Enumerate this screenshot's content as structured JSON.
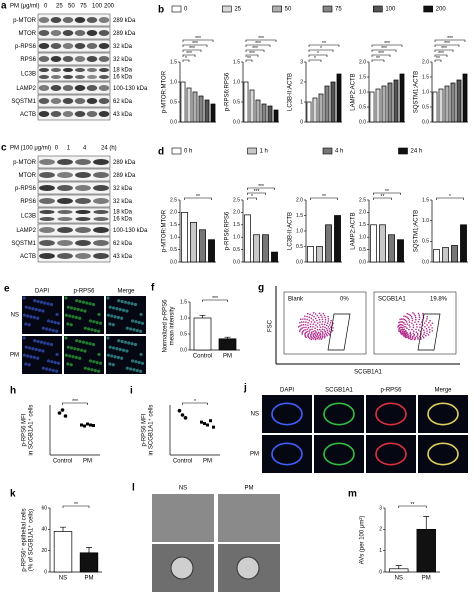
{
  "panels": {
    "a": {
      "label": "a",
      "header": "PM (μg/ml)",
      "lanes": [
        "0",
        "25",
        "50",
        "75",
        "100",
        "200"
      ],
      "rows": [
        {
          "name": "p-MTOR",
          "size": "289 kDa"
        },
        {
          "name": "MTOR",
          "size": "289 kDa"
        },
        {
          "name": "p-RPS6",
          "size": "32 kDa"
        },
        {
          "name": "RPS6",
          "size": "32 kDa"
        },
        {
          "name": "LC3B",
          "size": "18 kDa",
          "size2": "16 kDa"
        },
        {
          "name": "LAMP2",
          "size": "100-130 kDa"
        },
        {
          "name": "SQSTM1",
          "size": "62 kDa"
        },
        {
          "name": "ACTB",
          "size": "43 kDa"
        }
      ]
    },
    "b": {
      "label": "b",
      "legend": [
        "0",
        "25",
        "50",
        "75",
        "100",
        "200"
      ],
      "colors": [
        "#ffffff",
        "#d9d9d9",
        "#b0b0b0",
        "#858585",
        "#555555",
        "#111111"
      ]
    },
    "c": {
      "label": "c",
      "header": "PM (100 μg/ml)",
      "lanes": [
        "0",
        "1",
        "4",
        "24 (h)"
      ],
      "rows": [
        {
          "name": "p-MTOR",
          "size": "289 kDa"
        },
        {
          "name": "MTOR",
          "size": "289 kDa"
        },
        {
          "name": "p-RPS6",
          "size": "32 kDa"
        },
        {
          "name": "RPS6",
          "size": "32 kDa"
        },
        {
          "name": "LC3B",
          "size": "18 kDa",
          "size2": "16 kDa"
        },
        {
          "name": "LAMP2",
          "size": "100-130 kDa"
        },
        {
          "name": "SQSTM1",
          "size": "62 kDa"
        },
        {
          "name": "ACTB",
          "size": "43 kDa"
        }
      ]
    },
    "d": {
      "label": "d",
      "legend": [
        "0 h",
        "1 h",
        "4 h",
        "24 h"
      ],
      "colors": [
        "#ffffff",
        "#c8c8c8",
        "#777777",
        "#111111"
      ]
    },
    "e": {
      "label": "e",
      "columns": [
        "DAPI",
        "p-RPS6",
        "Merge"
      ],
      "rows": [
        "NS",
        "PM"
      ]
    },
    "g": {
      "label": "g",
      "plots": [
        {
          "title": "Blank",
          "percent": "0%"
        },
        {
          "title": "SCGB1A1",
          "percent": "19.8%"
        }
      ],
      "ylabel": "FSC",
      "xlabel": "SCGB1A1"
    },
    "j": {
      "label": "j",
      "columns": [
        "DAPI",
        "SCGB1A1",
        "p-RPS6",
        "Merge"
      ],
      "rows": [
        "NS",
        "PM"
      ]
    },
    "l": {
      "label": "l",
      "columns": [
        "NS",
        "PM"
      ]
    }
  },
  "chart_data": [
    {
      "type": "bar",
      "ylabel": [
        "p-MTOR:MTOR"
      ],
      "values": [
        1.0,
        0.85,
        0.75,
        0.65,
        0.55,
        0.45
      ],
      "colors": [
        "#ffffff",
        "#d9d9d9",
        "#b0b0b0",
        "#858585",
        "#555555",
        "#111111"
      ],
      "ylim": [
        0,
        1.5
      ],
      "yticks": [
        {
          "value": 0,
          "label": "0.0"
        },
        0.5,
        {
          "value": 1,
          "label": "1.0"
        },
        1.5
      ],
      "annotations": [
        "*",
        "***",
        "***",
        "***",
        "***"
      ]
    },
    {
      "type": "bar",
      "ylabel": [
        "p-RPS6:RPS6"
      ],
      "values": [
        1.0,
        0.8,
        0.55,
        0.45,
        0.4,
        0.3
      ],
      "colors": [
        "#ffffff",
        "#d9d9d9",
        "#b0b0b0",
        "#858585",
        "#555555",
        "#111111"
      ],
      "ylim": [
        0,
        1.5
      ],
      "yticks": [
        {
          "value": 0,
          "label": "0.0"
        },
        0.5,
        {
          "value": 1,
          "label": "1.0"
        },
        1.5
      ],
      "annotations": [
        "**",
        "***",
        "***",
        "***",
        "***"
      ]
    },
    {
      "type": "bar",
      "ylabel": [
        "LC3B-II:ACTB"
      ],
      "values": [
        1.0,
        1.2,
        1.4,
        1.8,
        2.0,
        2.4
      ],
      "colors": [
        "#ffffff",
        "#d9d9d9",
        "#b0b0b0",
        "#858585",
        "#555555",
        "#111111"
      ],
      "ylim": [
        0,
        3
      ],
      "yticks": [
        0,
        1,
        2,
        3
      ],
      "annotations": [
        "*",
        "*",
        "*",
        "**"
      ]
    },
    {
      "type": "bar",
      "ylabel": [
        "LAMP2:ACTB"
      ],
      "values": [
        1.0,
        1.1,
        1.2,
        1.3,
        1.4,
        1.6
      ],
      "colors": [
        "#ffffff",
        "#d9d9d9",
        "#b0b0b0",
        "#858585",
        "#555555",
        "#111111"
      ],
      "ylim": [
        0,
        2
      ],
      "yticks": [
        {
          "value": 0,
          "label": "0.0"
        },
        0.5,
        {
          "value": 1,
          "label": "1.0"
        },
        1.5,
        {
          "value": 2,
          "label": "2.0"
        }
      ],
      "annotations": [
        "**",
        "***",
        "***",
        "***"
      ]
    },
    {
      "type": "bar",
      "ylabel": [
        "SQSTM1:ACTB"
      ],
      "values": [
        1.0,
        1.1,
        1.2,
        1.3,
        1.4,
        1.6
      ],
      "colors": [
        "#ffffff",
        "#d9d9d9",
        "#b0b0b0",
        "#858585",
        "#555555",
        "#111111"
      ],
      "ylim": [
        0,
        2
      ],
      "yticks": [
        {
          "value": 0,
          "label": "0.0"
        },
        0.5,
        {
          "value": 1,
          "label": "1.0"
        },
        1.5,
        {
          "value": 2,
          "label": "2.0"
        }
      ],
      "annotations": [
        "**",
        "***",
        "***",
        "***",
        "***"
      ]
    },
    {
      "type": "bar",
      "ylabel": [
        "p-MTOR:MTOR"
      ],
      "values": [
        2.0,
        1.6,
        1.3,
        0.9
      ],
      "colors": [
        "#ffffff",
        "#c8c8c8",
        "#777777",
        "#111111"
      ],
      "ylim": [
        0,
        2.5
      ],
      "yticks": [
        {
          "value": 0,
          "label": "0.0"
        },
        0.5,
        {
          "value": 1,
          "label": "1.0"
        },
        1.5,
        {
          "value": 2,
          "label": "2.0"
        },
        2.5
      ],
      "annotations": [
        "**"
      ]
    },
    {
      "type": "bar",
      "ylabel": [
        "p-RPS6:RPS6"
      ],
      "values": [
        1.9,
        1.1,
        1.1,
        0.4
      ],
      "colors": [
        "#ffffff",
        "#c8c8c8",
        "#777777",
        "#111111"
      ],
      "ylim": [
        0,
        2.5
      ],
      "yticks": [
        {
          "value": 0,
          "label": "0.0"
        },
        0.5,
        {
          "value": 1,
          "label": "1.0"
        },
        1.5,
        {
          "value": 2,
          "label": "2.0"
        },
        2.5
      ],
      "annotations": [
        "*",
        "***",
        "***"
      ]
    },
    {
      "type": "bar",
      "ylabel": [
        "LC3B-II:ACTB"
      ],
      "values": [
        0.5,
        0.5,
        1.2,
        1.5
      ],
      "colors": [
        "#ffffff",
        "#c8c8c8",
        "#777777",
        "#111111"
      ],
      "ylim": [
        0,
        2
      ],
      "yticks": [
        {
          "value": 0,
          "label": "0.0"
        },
        0.5,
        {
          "value": 1,
          "label": "1.0"
        },
        1.5,
        {
          "value": 2,
          "label": "2.0"
        }
      ],
      "annotations": [
        "**"
      ]
    },
    {
      "type": "bar",
      "ylabel": [
        "LAMP2:ACTB"
      ],
      "values": [
        1.5,
        1.5,
        1.1,
        0.9
      ],
      "colors": [
        "#ffffff",
        "#c8c8c8",
        "#777777",
        "#111111"
      ],
      "ylim": [
        0,
        2.5
      ],
      "yticks": [
        {
          "value": 0,
          "label": "0.0"
        },
        0.5,
        {
          "value": 1,
          "label": "1.0"
        },
        1.5,
        {
          "value": 2,
          "label": "2.0"
        },
        2.5
      ],
      "annotations": [
        "**",
        "**"
      ]
    },
    {
      "type": "bar",
      "ylabel": [
        "SQSTM1:ACTB"
      ],
      "values": [
        0.3,
        0.35,
        0.4,
        0.9
      ],
      "colors": [
        "#ffffff",
        "#c8c8c8",
        "#777777",
        "#111111"
      ],
      "ylim": [
        0,
        1.5
      ],
      "yticks": [
        {
          "value": 0,
          "label": "0.0"
        },
        0.5,
        {
          "value": 1,
          "label": "1.0"
        },
        1.5
      ],
      "annotations": [
        "*"
      ]
    },
    {
      "type": "bar",
      "panel_label": "f",
      "ylabel": [
        "Normalized p-RPS6",
        "mean intensity"
      ],
      "categories": [
        "Control",
        "PM"
      ],
      "values": [
        1.0,
        0.35
      ],
      "errors": [
        0.08,
        0.05
      ],
      "colors": [
        "#ffffff",
        "#111111"
      ],
      "ylim": [
        0,
        1.5
      ],
      "yticks": [
        {
          "value": 0,
          "label": "0.0"
        },
        0.5,
        {
          "value": 1,
          "label": "1.0"
        },
        1.5
      ],
      "annotations": [
        "***"
      ]
    },
    {
      "type": "strip",
      "panel_label": "h",
      "ylabel": [
        "p-RPS6 MFI",
        "in SCGB1A1⁺ cells"
      ],
      "categories": [
        "Control",
        "PM"
      ],
      "values": [
        [
          4.2,
          4.5,
          3.9
        ],
        [
          3.0,
          2.9,
          3.1,
          3.0,
          2.95
        ]
      ],
      "colors": [
        "#000000",
        "#000000"
      ],
      "ylim": [
        0,
        5
      ],
      "annotations": [
        "***"
      ]
    },
    {
      "type": "strip",
      "panel_label": "i",
      "ylabel": [
        "p-RPS6 MFI",
        "in SCGB1A1⁺ cells"
      ],
      "categories": [
        "Control",
        "PM"
      ],
      "values": [
        [
          6.2,
          5.6,
          5.2
        ],
        [
          4.6,
          4.4,
          4.2,
          4.8,
          3.9
        ]
      ],
      "colors": [
        "#000000",
        "#000000"
      ],
      "ylim": [
        0,
        7
      ],
      "annotations": [
        "*"
      ]
    },
    {
      "type": "bar",
      "panel_label": "k",
      "ylabel": [
        "p-RPS6⁺ epithelial cells",
        "(% of SCGB1A1⁺ cells)"
      ],
      "categories": [
        "NS",
        "PM"
      ],
      "values": [
        38,
        18
      ],
      "errors": [
        4,
        5
      ],
      "colors": [
        "#ffffff",
        "#111111"
      ],
      "ylim": [
        0,
        60
      ],
      "yticks": [
        0,
        20,
        40,
        60
      ],
      "annotations": [
        "**"
      ]
    },
    {
      "type": "bar",
      "panel_label": "m",
      "ylabel": [
        "AVs (per 100 μm²)"
      ],
      "categories": [
        "NS",
        "PM"
      ],
      "values": [
        0.15,
        2.0
      ],
      "errors": [
        0.15,
        0.6
      ],
      "colors": [
        "#ffffff",
        "#111111"
      ],
      "ylim": [
        0,
        3
      ],
      "yticks": [
        0,
        1,
        2,
        3
      ],
      "annotations": [
        "**"
      ]
    }
  ]
}
